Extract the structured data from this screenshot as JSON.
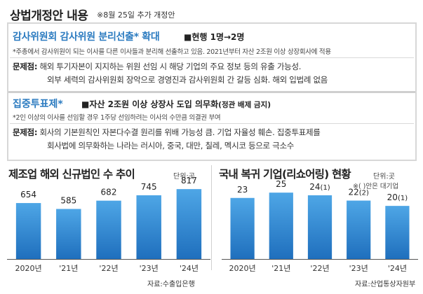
{
  "header": {
    "title": "상법개정안 내용",
    "note": "※8월 25일 추가 개정안"
  },
  "section1": {
    "title": "감사위원회 감사위원 분리선출",
    "title_mark": "*",
    "title_suffix": "확대",
    "current": "■현행 1명→2명",
    "footnote": "*주총에서 감사위원이 되는 이사를 다른 이사들과 분리해 선출하고 있음. 2021년부터 자산 2조원 이상 상장회사에 적용",
    "problem_label": "문제점:",
    "problem_line1": "해외 투기자본이 지지하는 위원 선임 시 해당 기업의 주요 정보 등의 유출 가능성.",
    "problem_line2": "외부 세력의 감사위원회 장악으로 경영진과 감사위원회 간 갈등 심화. 해외 입법례 없음"
  },
  "section2": {
    "title": "집중투표제*",
    "sub": "■자산 2조원 이상 상장사 도입 의무화",
    "sub_paren": "(정관 배제 금지)",
    "footnote": "*2인 이상의 이사를 선임할 경우 1주당 선임하려는 이사의 수만큼 의결권 부여",
    "problem_label": "문제점:",
    "problem_line1": "회사의 기본원칙인 자본다수결 원리를 위배 가능성 큼. 기업 자율성 훼손. 집중투표제를",
    "problem_line2": "회사법에 의무화하는 나라는 러시아, 중국, 대만, 칠레, 멕시코 등으로 극소수"
  },
  "colors": {
    "bar_top": "#4ea6e6",
    "bar_bottom": "#1f6fbd",
    "accent": "#2b7bc0"
  },
  "chart_data": [
    {
      "type": "bar",
      "title": "제조업 해외 신규법인 수 추이",
      "unit": "단위:곳",
      "categories": [
        "2020년",
        "'21년",
        "'22년",
        "'23년",
        "'24년"
      ],
      "values": [
        654,
        585,
        682,
        745,
        817
      ],
      "ylim": [
        0,
        900
      ],
      "source": "자료:수출입은행"
    },
    {
      "type": "bar",
      "title": "국내 복귀 기업(리쇼어링) 현황",
      "unit": "단위:곳",
      "unit_note": "※( )안은 대기업",
      "categories": [
        "2020년",
        "'21년",
        "'22년",
        "'23년",
        "'24년"
      ],
      "values": [
        23,
        25,
        24,
        22,
        20
      ],
      "large_firms": [
        "",
        "",
        "1",
        "2",
        "1"
      ],
      "ylim": [
        0,
        29
      ],
      "source": "자료:산업통상자원부"
    }
  ]
}
